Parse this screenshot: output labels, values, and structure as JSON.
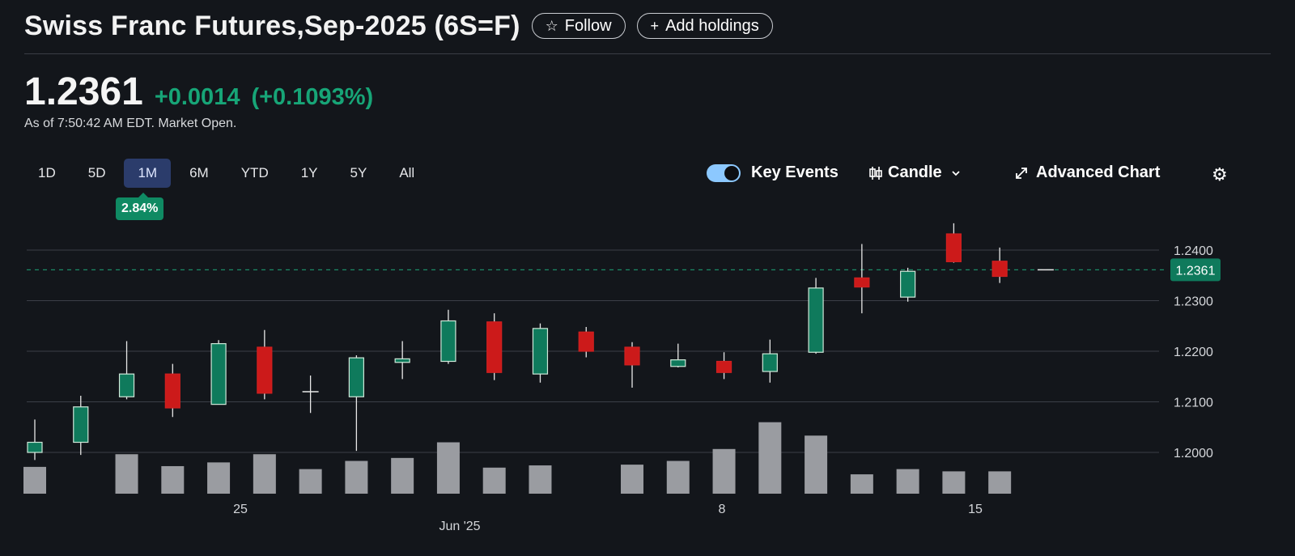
{
  "header": {
    "title": "Swiss Franc Futures,Sep-2025 (6S=F)",
    "follow_label": "Follow",
    "follow_icon": "star-outline-icon",
    "add_label": "Add holdings",
    "add_icon": "plus-icon"
  },
  "quote": {
    "price": "1.2361",
    "change": "+0.0014",
    "change_percent": "(+0.1093%)",
    "as_of": "As of 7:50:42 AM EDT. Market Open."
  },
  "ranges": {
    "items": [
      "1D",
      "5D",
      "1M",
      "6M",
      "YTD",
      "1Y",
      "5Y",
      "All"
    ],
    "active": "1M",
    "badge": "2.84%"
  },
  "controls": {
    "key_events_label": "Key Events",
    "key_events_on": true,
    "chart_type_label": "Candle",
    "advanced_chart_label": "Advanced Chart"
  },
  "colors": {
    "background": "#13161b",
    "up": "#0f7a5c",
    "down": "#cc1a1a",
    "positive_text": "#17a577",
    "volume": "#9a9ca1",
    "active_range": "#2b3c6b",
    "toggle": "#8cc8ff"
  },
  "chart_data": {
    "type": "candlestick",
    "current_price_label": "1.2361",
    "current_price": 1.2361,
    "yticks": [
      1.2,
      1.21,
      1.22,
      1.23,
      1.24
    ],
    "ytick_labels": [
      "1.2000",
      "1.2100",
      "1.2200",
      "1.2300",
      "1.2400"
    ],
    "ylim": [
      1.1955,
      1.247
    ],
    "x_labels": [
      "25",
      "Jun '25",
      "8",
      "15"
    ],
    "grid": true,
    "candles": [
      {
        "o": 1.2,
        "h": 1.2065,
        "l": 1.1985,
        "c": 1.202,
        "v": 0.36
      },
      {
        "o": 1.202,
        "h": 1.2112,
        "l": 1.1995,
        "c": 1.209,
        "v": 0
      },
      {
        "o": 1.211,
        "h": 1.222,
        "l": 1.2105,
        "c": 1.2155,
        "v": 0.53
      },
      {
        "o": 1.2155,
        "h": 1.2175,
        "l": 1.207,
        "c": 1.2088,
        "v": 0.37
      },
      {
        "o": 1.2095,
        "h": 1.2222,
        "l": 1.2095,
        "c": 1.2215,
        "v": 0.42
      },
      {
        "o": 1.2208,
        "h": 1.2242,
        "l": 1.2105,
        "c": 1.2117,
        "v": 0.53
      },
      {
        "o": 1.212,
        "h": 1.2152,
        "l": 1.2078,
        "c": 1.2118,
        "v": 0.33
      },
      {
        "o": 1.211,
        "h": 1.2192,
        "l": 1.2003,
        "c": 1.2187,
        "v": 0.44
      },
      {
        "o": 1.2178,
        "h": 1.222,
        "l": 1.2145,
        "c": 1.2185,
        "v": 0.48
      },
      {
        "o": 1.218,
        "h": 1.2282,
        "l": 1.2175,
        "c": 1.226,
        "v": 0.69
      },
      {
        "o": 1.2258,
        "h": 1.2275,
        "l": 1.2143,
        "c": 1.2158,
        "v": 0.35
      },
      {
        "o": 1.2155,
        "h": 1.2255,
        "l": 1.2138,
        "c": 1.2245,
        "v": 0.38
      },
      {
        "o": 1.2238,
        "h": 1.2248,
        "l": 1.2188,
        "c": 1.22,
        "v": 0
      },
      {
        "o": 1.2208,
        "h": 1.2218,
        "l": 1.2128,
        "c": 1.2173,
        "v": 0.39
      },
      {
        "o": 1.217,
        "h": 1.2215,
        "l": 1.2168,
        "c": 1.2183,
        "v": 0.44
      },
      {
        "o": 1.218,
        "h": 1.2198,
        "l": 1.2145,
        "c": 1.2158,
        "v": 0.6
      },
      {
        "o": 1.216,
        "h": 1.2223,
        "l": 1.2138,
        "c": 1.2195,
        "v": 0.96
      },
      {
        "o": 1.2198,
        "h": 1.2345,
        "l": 1.2195,
        "c": 1.2325,
        "v": 0.78
      },
      {
        "o": 1.2345,
        "h": 1.2412,
        "l": 1.2275,
        "c": 1.2327,
        "v": 0.26
      },
      {
        "o": 1.2307,
        "h": 1.2365,
        "l": 1.2298,
        "c": 1.2358,
        "v": 0.33
      },
      {
        "o": 1.2432,
        "h": 1.2453,
        "l": 1.2375,
        "c": 1.2377,
        "v": 0.3
      },
      {
        "o": 1.2378,
        "h": 1.2405,
        "l": 1.2335,
        "c": 1.2348,
        "v": 0.3
      },
      {
        "o": 1.2361,
        "h": 1.2361,
        "l": 1.2361,
        "c": 1.2361,
        "v": 0
      }
    ]
  }
}
